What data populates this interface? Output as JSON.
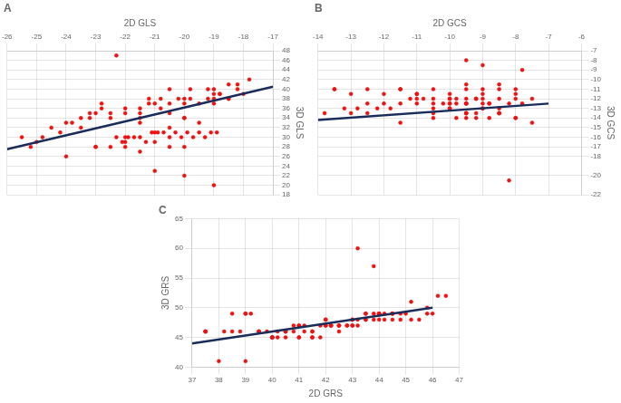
{
  "chart_data": [
    {
      "type": "scatter",
      "title": "A",
      "x_label": "2D GLS",
      "y_label": "3D GLS",
      "xlim": [
        -26,
        -17
      ],
      "ylim": [
        18,
        48
      ],
      "xticks": [
        -26,
        -25,
        -24,
        -23,
        -22,
        -21,
        -20,
        -19,
        -18,
        -17
      ],
      "yticks": [
        18,
        20,
        22,
        24,
        26,
        28,
        30,
        32,
        34,
        36,
        38,
        40,
        42,
        44,
        46,
        48
      ],
      "grid": true,
      "series": [
        {
          "type": "scatter",
          "color": "#ee1111",
          "x": [
            -25.5,
            -25.0,
            -24.8,
            -24.5,
            -24.2,
            -24.0,
            -23.8,
            -23.5,
            -23.2,
            -23.0,
            -22.8,
            -22.5,
            -22.3,
            -22.1,
            -22.0,
            -21.9,
            -21.7,
            -21.5,
            -21.3,
            -21.2,
            -21.1,
            -21.0,
            -20.9,
            -20.8,
            -20.7,
            -20.5,
            -20.5,
            -20.3,
            -20.2,
            -20.1,
            -20.0,
            -19.9,
            -19.8,
            -19.7,
            -19.5,
            -19.5,
            -19.3,
            -19.2,
            -19.1,
            -19.0,
            -18.9,
            -18.8,
            -18.5,
            -18.2,
            -22.5,
            -22.0,
            -21.5,
            -21.0,
            -20.5,
            -20.0,
            -21.5,
            -20.5,
            -20.0,
            -21.5,
            -19.5,
            -20.5,
            -21.5,
            -22.5,
            -23.5,
            -22.0,
            -23.2,
            -22.8,
            -21.2,
            -20.8,
            -19.8,
            -18.8,
            -18.5,
            -19.2,
            -18.2,
            -20.5,
            -19.0,
            -17.8,
            -21.5,
            -22.0,
            -19.0,
            -20.0,
            -18.5,
            -23.0,
            -22.3,
            -21.0,
            -20.0,
            -19.0,
            -25.2,
            -24.0,
            -23.0,
            -22.0,
            -21.0,
            -20.0,
            -19.0,
            -18.0
          ],
          "values": [
            30,
            29,
            30,
            32,
            31,
            33,
            33,
            34,
            34,
            35,
            36,
            34,
            30,
            29,
            35,
            30,
            30,
            30,
            29,
            38,
            31,
            37,
            31,
            36,
            31,
            37,
            30,
            31,
            38,
            30,
            37,
            31,
            38,
            30,
            37,
            31,
            30,
            38,
            31,
            39,
            31,
            39,
            38,
            40,
            28,
            28,
            27,
            29,
            28,
            28,
            34,
            32,
            34,
            36,
            33,
            35,
            33,
            35,
            32,
            36,
            35,
            37,
            37,
            38,
            40,
            39,
            41,
            40,
            41,
            40,
            40,
            42,
            35,
            30,
            38,
            38,
            38,
            28,
            47,
            23,
            22,
            20,
            28,
            26,
            28,
            29,
            31,
            34,
            37,
            39
          ]
        },
        {
          "type": "line",
          "color": "#1a2d5a",
          "x": [
            -26,
            -17
          ],
          "values": [
            27.5,
            40.5
          ]
        }
      ]
    },
    {
      "type": "scatter",
      "title": "B",
      "x_label": "2D GCS",
      "y_label": "3D GCS",
      "xlim": [
        -14,
        -6
      ],
      "ylim": [
        -22,
        -7
      ],
      "xticks": [
        -14,
        -13,
        -12,
        -11,
        -10,
        -9,
        -8,
        -7,
        -6
      ],
      "yticks": [
        -22,
        -20,
        -18,
        -17,
        -16,
        -15,
        -14,
        -13,
        -12,
        -11,
        -10,
        -9,
        -8,
        -7
      ],
      "grid": true,
      "series": [
        {
          "type": "scatter",
          "color": "#ee1111",
          "x": [
            -13.8,
            -13.5,
            -13.2,
            -13.0,
            -12.8,
            -12.5,
            -12.2,
            -12.0,
            -11.8,
            -11.5,
            -11.2,
            -11.0,
            -10.8,
            -10.5,
            -10.2,
            -10.0,
            -9.8,
            -9.5,
            -9.2,
            -9.0,
            -8.8,
            -8.5,
            -8.2,
            -8.0,
            -7.8,
            -7.5,
            -12.5,
            -12.0,
            -11.5,
            -11.0,
            -10.5,
            -10.0,
            -9.5,
            -9.0,
            -8.5,
            -8.0,
            -10.5,
            -10.0,
            -9.5,
            -9.0,
            -8.5,
            -9.5,
            -9.2,
            -8.8,
            -8.5,
            -9.8,
            -9.5,
            -9.2,
            -8.5,
            -8.0,
            -10.5,
            -10.0,
            -9.5,
            -9.0,
            -9.5,
            -9.0,
            -8.5,
            -8.0,
            -11.0,
            -10.5,
            -10.0,
            -9.5,
            -12.5,
            -13.5,
            -13.0,
            -11.5,
            -11.0,
            -10.0,
            -9.5,
            -9.0,
            -8.0,
            -7.5,
            -8.5,
            -9.5,
            -10.5,
            -11.5,
            -10.0,
            -9.8,
            -9.2,
            -8.8,
            -8.2,
            -7.8,
            -9.0,
            -9.5
          ],
          "values": [
            -13.5,
            -11.0,
            -13.0,
            -13.5,
            -13.0,
            -12.5,
            -13.0,
            -12.5,
            -13.0,
            -12.5,
            -12.0,
            -12.5,
            -12.0,
            -13.0,
            -12.5,
            -12.5,
            -12.0,
            -12.5,
            -12.0,
            -13.0,
            -12.5,
            -12.0,
            -12.5,
            -12.0,
            -12.5,
            -12.0,
            -11.0,
            -11.5,
            -11.0,
            -11.5,
            -11.0,
            -11.5,
            -11.0,
            -11.5,
            -11.0,
            -11.5,
            -13.5,
            -13.0,
            -13.5,
            -13.0,
            -13.5,
            -14.0,
            -13.5,
            -14.0,
            -13.5,
            -14.0,
            -13.5,
            -14.0,
            -13.5,
            -14.0,
            -12.0,
            -12.5,
            -12.0,
            -12.5,
            -10.5,
            -11.0,
            -10.5,
            -11.0,
            -12.0,
            -12.5,
            -12.0,
            -12.5,
            -13.5,
            -11.0,
            -11.5,
            -11.0,
            -11.5,
            -13.0,
            -12.5,
            -12.0,
            -14.0,
            -14.5,
            -13.0,
            -13.5,
            -14.0,
            -14.5,
            -12.0,
            -12.5,
            -12.0,
            -12.5,
            -20.5,
            -9.0,
            -8.5,
            -8.0
          ]
        },
        {
          "type": "line",
          "color": "#1a2d5a",
          "x": [
            -14,
            -7
          ],
          "values": [
            -14.2,
            -12.5
          ]
        }
      ]
    },
    {
      "type": "scatter",
      "title": "C",
      "x_label": "2D GRS",
      "y_label": "3D GRS",
      "xlim": [
        37,
        47
      ],
      "ylim": [
        40,
        65
      ],
      "xticks": [
        37,
        38,
        39,
        40,
        41,
        42,
        43,
        44,
        45,
        46,
        47
      ],
      "yticks": [
        40,
        45,
        50,
        55,
        60,
        65
      ],
      "grid": true,
      "series": [
        {
          "type": "scatter",
          "color": "#ee1111",
          "x": [
            37.5,
            37.5,
            38.0,
            38.2,
            38.5,
            38.8,
            39.0,
            39.0,
            39.2,
            39.5,
            39.5,
            39.8,
            40.0,
            40.0,
            40.2,
            40.5,
            40.5,
            40.8,
            41.0,
            41.0,
            41.2,
            41.5,
            41.5,
            41.8,
            42.0,
            42.0,
            42.2,
            42.5,
            42.5,
            42.8,
            43.0,
            43.0,
            43.2,
            43.5,
            43.5,
            43.8,
            44.0,
            44.0,
            44.2,
            44.5,
            44.5,
            44.8,
            45.0,
            45.2,
            45.5,
            45.8,
            46.0,
            46.2,
            39.0,
            40.0,
            40.5,
            41.0,
            41.5,
            42.0,
            42.5,
            43.0,
            43.5,
            44.0,
            44.5,
            40.2,
            40.8,
            41.2,
            41.8,
            42.2,
            42.8,
            43.2,
            43.8,
            44.2,
            39.5,
            40.5,
            41.5,
            42.5,
            43.5,
            44.5,
            41.0,
            42.0,
            43.0,
            44.0,
            37.5,
            38.5,
            40.0,
            42.2,
            43.2,
            43.8,
            44.8,
            45.2,
            45.8,
            46.5
          ],
          "values": [
            46,
            46,
            41,
            46,
            49,
            46,
            41,
            49,
            49,
            46,
            46,
            46,
            45,
            45,
            45,
            46,
            46,
            46,
            45,
            47,
            47,
            45,
            46,
            45,
            48,
            47,
            47,
            46,
            47,
            47,
            47,
            48,
            48,
            49,
            48,
            49,
            49,
            49,
            49,
            49,
            49,
            48,
            49,
            48,
            48,
            49,
            49,
            52,
            49,
            45,
            46,
            45,
            46,
            47,
            47,
            47,
            48,
            48,
            49,
            46,
            47,
            46,
            47,
            47,
            47,
            47,
            48,
            48,
            46,
            45,
            45,
            47,
            49,
            48,
            47,
            48,
            48,
            49,
            46,
            46,
            45,
            47,
            60,
            57,
            49,
            51,
            50,
            52
          ]
        },
        {
          "type": "line",
          "color": "#1a2d5a",
          "x": [
            37,
            46
          ],
          "values": [
            44.0,
            50.0
          ]
        }
      ]
    }
  ]
}
